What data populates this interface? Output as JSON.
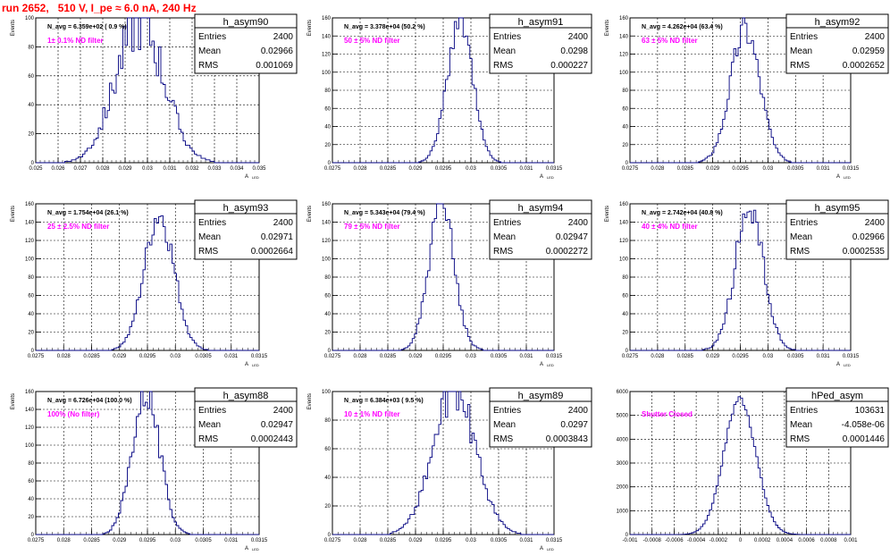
{
  "title": "run 2652,   510 V, I_pe ≈ 6.0 nA, 240 Hz",
  "chart_data": [
    {
      "type": "histogram",
      "name": "h_asym90",
      "ylabel": "Events",
      "xlabel": "A",
      "xlabel_sub": "LED",
      "xlim": [
        0.025,
        0.035
      ],
      "xticks": [
        "0.025",
        "0.026",
        "0.027",
        "0.028",
        "0.029",
        "0.03",
        "0.031",
        "0.032",
        "0.033",
        "0.034",
        "0.035"
      ],
      "ylim": [
        0,
        100
      ],
      "yticks": [
        "0",
        "20",
        "40",
        "60",
        "80",
        "100"
      ],
      "stats": {
        "entries": "2400",
        "mean": "0.02966",
        "rms": "0.001069"
      },
      "navg": "N_avg = 6.359e+02 ( 0.9 %)",
      "filter": "1± 0.1% ND filter",
      "filter_color": "#ff00ff",
      "mean": 0.02966,
      "sigma": 0.001069,
      "peak": 98,
      "noise": 0.22,
      "seed": 90
    },
    {
      "type": "histogram",
      "name": "h_asym91",
      "ylabel": "Events",
      "xlabel": "A",
      "xlabel_sub": "LED",
      "xlim": [
        0.0275,
        0.0315
      ],
      "xticks": [
        "0.0275",
        "0.028",
        "0.0285",
        "0.029",
        "0.0295",
        "0.03",
        "0.0305",
        "0.031",
        "0.0315"
      ],
      "ylim": [
        0,
        160
      ],
      "yticks": [
        "0",
        "20",
        "40",
        "60",
        "80",
        "100",
        "120",
        "140",
        "160"
      ],
      "stats": {
        "entries": "2400",
        "mean": "0.0298",
        "rms": "0.000227"
      },
      "navg": "N_avg = 3.378e+04 (50.2 %)",
      "filter": "50 ± 5% ND filter",
      "filter_color": "#ff00ff",
      "mean": 0.0298,
      "sigma": 0.000227,
      "peak": 158,
      "noise": 0.12,
      "seed": 91
    },
    {
      "type": "histogram",
      "name": "h_asym92",
      "ylabel": "Events",
      "xlabel": "A",
      "xlabel_sub": "LED",
      "xlim": [
        0.0275,
        0.0315
      ],
      "xticks": [
        "0.0275",
        "0.028",
        "0.0285",
        "0.029",
        "0.0295",
        "0.03",
        "0.0305",
        "0.031",
        "0.0315"
      ],
      "ylim": [
        0,
        160
      ],
      "yticks": [
        "0",
        "20",
        "40",
        "60",
        "80",
        "100",
        "120",
        "140",
        "160"
      ],
      "stats": {
        "entries": "2400",
        "mean": "0.02959",
        "rms": "0.0002652"
      },
      "navg": "N_avg = 4.262e+04 (63.4 %)",
      "filter": "63 ± 5% ND filter",
      "filter_color": "#ff00ff",
      "mean": 0.02959,
      "sigma": 0.0002652,
      "peak": 150,
      "noise": 0.12,
      "seed": 92
    },
    {
      "type": "histogram",
      "name": "h_asym93",
      "ylabel": "Events",
      "xlabel": "A",
      "xlabel_sub": "LED",
      "xlim": [
        0.0275,
        0.0315
      ],
      "xticks": [
        "0.0275",
        "0.028",
        "0.0285",
        "0.029",
        "0.0295",
        "0.03",
        "0.0305",
        "0.031",
        "0.0315"
      ],
      "ylim": [
        0,
        160
      ],
      "yticks": [
        "0",
        "20",
        "40",
        "60",
        "80",
        "100",
        "120",
        "140",
        "160"
      ],
      "stats": {
        "entries": "2400",
        "mean": "0.02971",
        "rms": "0.0002664"
      },
      "navg": "N_avg = 1.754e+04 (26.1 %)",
      "filter": "25 ± 2.5% ND filter",
      "filter_color": "#ff00ff",
      "mean": 0.02971,
      "sigma": 0.0002664,
      "peak": 148,
      "noise": 0.12,
      "seed": 93
    },
    {
      "type": "histogram",
      "name": "h_asym94",
      "ylabel": "Events",
      "xlabel": "A",
      "xlabel_sub": "LED",
      "xlim": [
        0.0275,
        0.0315
      ],
      "xticks": [
        "0.0275",
        "0.028",
        "0.0285",
        "0.029",
        "0.0295",
        "0.03",
        "0.0305",
        "0.031",
        "0.0315"
      ],
      "ylim": [
        0,
        160
      ],
      "yticks": [
        "0",
        "20",
        "40",
        "60",
        "80",
        "100",
        "120",
        "140",
        "160"
      ],
      "stats": {
        "entries": "2400",
        "mean": "0.02947",
        "rms": "0.0002272"
      },
      "navg": "N_avg = 5.343e+04 (79.4 %)",
      "filter": "79 ± 5% ND filter",
      "filter_color": "#ff00ff",
      "mean": 0.02947,
      "sigma": 0.0002272,
      "peak": 158,
      "noise": 0.12,
      "seed": 94
    },
    {
      "type": "histogram",
      "name": "h_asym95",
      "ylabel": "Events",
      "xlabel": "A",
      "xlabel_sub": "LED",
      "xlim": [
        0.0275,
        0.0315
      ],
      "xticks": [
        "0.0275",
        "0.028",
        "0.0285",
        "0.029",
        "0.0295",
        "0.03",
        "0.0305",
        "0.031",
        "0.0315"
      ],
      "ylim": [
        0,
        160
      ],
      "yticks": [
        "0",
        "20",
        "40",
        "60",
        "80",
        "100",
        "120",
        "140",
        "160"
      ],
      "stats": {
        "entries": "2400",
        "mean": "0.02966",
        "rms": "0.0002535"
      },
      "navg": "N_avg = 2.742e+04 (40.8 %)",
      "filter": "40 ± 4% ND filter",
      "filter_color": "#ff00ff",
      "mean": 0.02966,
      "sigma": 0.0002535,
      "peak": 155,
      "noise": 0.12,
      "seed": 95
    },
    {
      "type": "histogram",
      "name": "h_asym88",
      "ylabel": "Events",
      "xlabel": "A",
      "xlabel_sub": "LED",
      "xlim": [
        0.0275,
        0.0315
      ],
      "xticks": [
        "0.0275",
        "0.028",
        "0.0285",
        "0.029",
        "0.0295",
        "0.03",
        "0.0305",
        "0.031",
        "0.0315"
      ],
      "ylim": [
        0,
        160
      ],
      "yticks": [
        "0",
        "20",
        "40",
        "60",
        "80",
        "100",
        "120",
        "140",
        "160"
      ],
      "stats": {
        "entries": "2400",
        "mean": "0.02947",
        "rms": "0.0002443"
      },
      "navg": "N_avg = 6.726e+04 (100.0 %)",
      "filter": "100% (No filter)",
      "filter_color": "#ff00ff",
      "mean": 0.02947,
      "sigma": 0.0002443,
      "peak": 160,
      "noise": 0.12,
      "seed": 88
    },
    {
      "type": "histogram",
      "name": "h_asym89",
      "ylabel": "Events",
      "xlabel": "A",
      "xlabel_sub": "LED",
      "xlim": [
        0.0275,
        0.0315
      ],
      "xticks": [
        "0.0275",
        "0.028",
        "0.0285",
        "0.029",
        "0.0295",
        "0.03",
        "0.0305",
        "0.031",
        "0.0315"
      ],
      "ylim": [
        0,
        100
      ],
      "yticks": [
        "0",
        "20",
        "40",
        "60",
        "80",
        "100"
      ],
      "stats": {
        "entries": "2400",
        "mean": "0.0297",
        "rms": "0.0003843"
      },
      "navg": "N_avg = 6.384e+03 ( 9.5 %)",
      "filter": "10 ± 1% ND filter",
      "filter_color": "#ff00ff",
      "mean": 0.0297,
      "sigma": 0.0003843,
      "peak": 100,
      "noise": 0.14,
      "seed": 89
    },
    {
      "type": "histogram",
      "name": "hPed_asym",
      "ylabel": "",
      "xlabel": "",
      "xlabel_sub": "",
      "xlim": [
        -0.001,
        0.001
      ],
      "xticks": [
        "-0.001",
        "-0.0008",
        "-0.0006",
        "-0.0004",
        "-0.0002",
        "0",
        "0.0002",
        "0.0004",
        "0.0006",
        "0.0008",
        "0.001"
      ],
      "ylim": [
        0,
        6000
      ],
      "yticks": [
        "0",
        "1000",
        "2000",
        "3000",
        "4000",
        "5000",
        "6000"
      ],
      "stats": {
        "entries": "103631",
        "mean": "-4.058e-06",
        "rms": "0.0001446"
      },
      "navg": "",
      "filter": "Shutter Closed",
      "filter_color": "#ff00ff",
      "mean": -4.058e-06,
      "sigma": 0.0001446,
      "peak": 5700,
      "noise": 0.03,
      "seed": 7
    }
  ]
}
